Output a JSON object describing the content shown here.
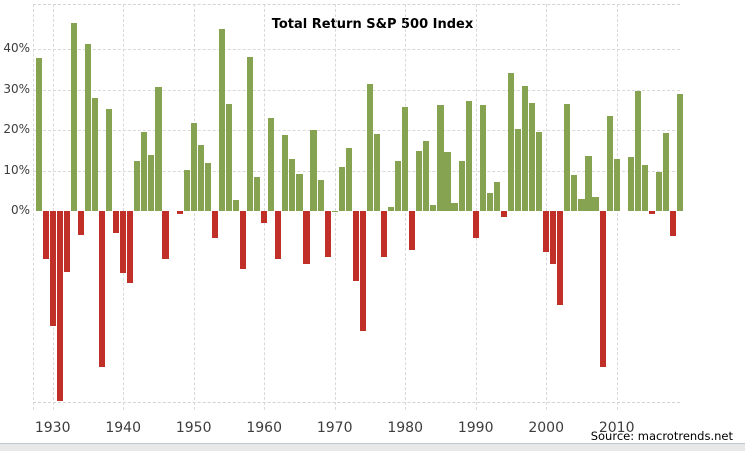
{
  "title": "Total Return S&P 500 Index",
  "source_text": "Source: macrotrends.net",
  "colors": {
    "positive_bar": "#85a351",
    "negative_bar": "#c03028",
    "gridline": "#d9d9d9",
    "axis_text": "#3d3d3d",
    "title_text": "#000000",
    "background": "#ffffff",
    "bottom_strip": "#e8e8e8"
  },
  "y_axis": {
    "tick_labels": [
      "40%",
      "30%",
      "20%",
      "10%",
      "0%"
    ],
    "tick_values": [
      40,
      30,
      20,
      10,
      0
    ]
  },
  "x_axis": {
    "tick_labels": [
      "1930",
      "1940",
      "1950",
      "1960",
      "1970",
      "1980",
      "1990",
      "2000",
      "2010"
    ],
    "tick_values": [
      1930,
      1940,
      1950,
      1960,
      1970,
      1980,
      1990,
      2000,
      2010
    ]
  },
  "chart_data": {
    "type": "bar",
    "title": "Total Return S&P 500 Index",
    "x": [
      1928,
      1929,
      1930,
      1931,
      1932,
      1933,
      1934,
      1935,
      1936,
      1937,
      1938,
      1939,
      1940,
      1941,
      1942,
      1943,
      1944,
      1945,
      1946,
      1947,
      1948,
      1949,
      1950,
      1951,
      1952,
      1953,
      1954,
      1955,
      1956,
      1957,
      1958,
      1959,
      1960,
      1961,
      1962,
      1963,
      1964,
      1965,
      1966,
      1967,
      1968,
      1969,
      1970,
      1971,
      1972,
      1973,
      1974,
      1975,
      1976,
      1977,
      1978,
      1979,
      1980,
      1981,
      1982,
      1983,
      1984,
      1985,
      1986,
      1987,
      1988,
      1989,
      1990,
      1991,
      1992,
      1993,
      1994,
      1995,
      1996,
      1997,
      1998,
      1999,
      2000,
      2001,
      2002,
      2003,
      2004,
      2005,
      2006,
      2007,
      2008,
      2009,
      2010,
      2011,
      2012,
      2013,
      2014,
      2015,
      2016,
      2017,
      2018,
      2019
    ],
    "values": [
      37.88,
      -11.91,
      -28.48,
      -47.07,
      -15.15,
      46.59,
      -5.94,
      41.37,
      27.92,
      -38.59,
      25.21,
      -5.45,
      -15.29,
      -17.86,
      12.43,
      19.45,
      13.8,
      30.72,
      -11.87,
      0.0,
      -0.65,
      10.26,
      21.78,
      16.46,
      11.78,
      -6.62,
      45.02,
      26.4,
      2.62,
      -14.31,
      38.06,
      8.48,
      -2.97,
      23.13,
      -11.81,
      18.89,
      12.97,
      9.06,
      -13.09,
      20.09,
      7.66,
      -11.36,
      0.1,
      10.79,
      15.63,
      -17.37,
      -29.72,
      31.55,
      19.15,
      -11.5,
      1.06,
      12.31,
      25.77,
      -9.73,
      14.76,
      17.27,
      1.4,
      26.33,
      14.62,
      2.03,
      12.4,
      27.25,
      -6.56,
      26.31,
      4.46,
      7.06,
      -1.54,
      34.11,
      20.26,
      31.01,
      26.67,
      19.53,
      -10.14,
      -13.04,
      -23.37,
      26.38,
      8.99,
      3.0,
      13.62,
      3.53,
      -38.49,
      23.45,
      12.78,
      0.0,
      13.41,
      29.6,
      11.39,
      -0.73,
      9.54,
      19.42,
      -6.24,
      28.88
    ],
    "ylim": [
      -48,
      51
    ],
    "grid": true,
    "legend": "none"
  }
}
